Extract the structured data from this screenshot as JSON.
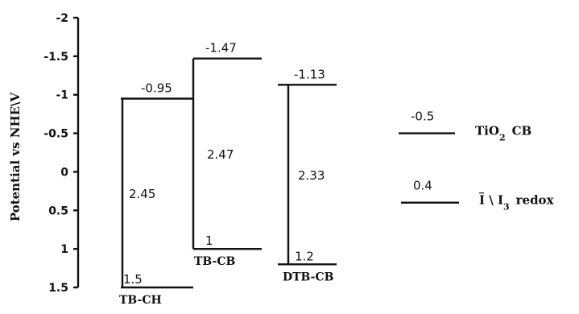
{
  "chart_data": {
    "type": "energy-level-diagram",
    "ylabel": "Potential vs NHE\\V",
    "ylim": [
      -2,
      1.5
    ],
    "y_inverted": true,
    "y_ticks": [
      -2,
      -1.5,
      -1,
      -0.5,
      0,
      0.5,
      1,
      1.5
    ],
    "y_tick_labels": [
      "-2",
      "-1.5",
      "-1",
      "-0.5",
      "0",
      "0.5",
      "1",
      "1.5"
    ],
    "dyes": [
      {
        "name": "TB-CH",
        "lumo": -0.95,
        "homo": 1.5,
        "lumo_label": "-0.95",
        "homo_label": "1.5",
        "gap_label": "2.45"
      },
      {
        "name": "TB-CB",
        "lumo": -1.47,
        "homo": 1.0,
        "lumo_label": "-1.47",
        "homo_label": "1",
        "gap_label": "2.47"
      },
      {
        "name": "DTB-CB",
        "lumo": -1.13,
        "homo": 1.2,
        "lumo_label": "-1.13",
        "homo_label": "1.2",
        "gap_label": "2.33"
      }
    ],
    "references": [
      {
        "value": -0.5,
        "value_label": "-0.5",
        "name_main": "TiO",
        "name_sub": "2",
        "name_rest": "CB"
      },
      {
        "value": 0.4,
        "value_label": "0.4",
        "name_main": "I \\ I",
        "name_sub": "3",
        "name_rest": "redox"
      }
    ]
  }
}
